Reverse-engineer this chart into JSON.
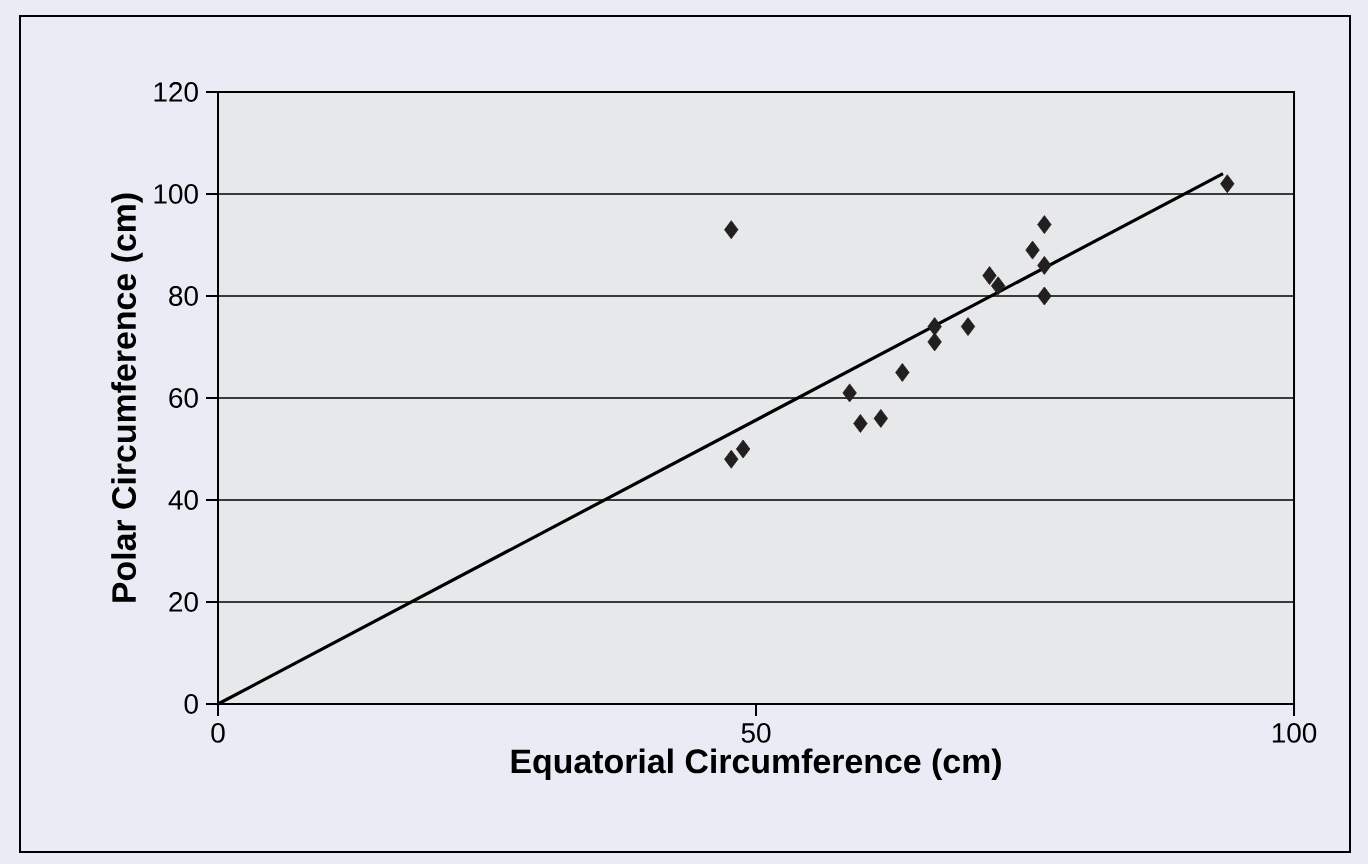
{
  "chart_data": {
    "type": "scatter",
    "xlabel": "Equatorial Circumference (cm)",
    "ylabel": "Polar Circumference (cm)",
    "xlim": [
      0,
      100
    ],
    "xticks": [
      0,
      50,
      100
    ],
    "ylim": [
      0,
      120
    ],
    "yticks": [
      0,
      20,
      40,
      60,
      80,
      100,
      120
    ],
    "grid": "y",
    "marker": "diamond",
    "series": [
      {
        "color": "#231f20",
        "x": [
          47.7,
          47.7,
          48.8,
          58.7,
          59.7,
          61.6,
          63.6,
          66.6,
          66.6,
          69.7,
          71.7,
          72.5,
          75.7,
          76.8,
          76.8,
          76.8,
          93.8
        ],
        "values": [
          93,
          48,
          50,
          61,
          55,
          56,
          65,
          74,
          71,
          74,
          84,
          82,
          89,
          94,
          86,
          80,
          102
        ]
      },
      {
        "type": "line",
        "color": "#000000",
        "marker": "none",
        "line_style": "solid",
        "x": [
          0,
          93.4
        ],
        "values": [
          0,
          104
        ]
      }
    ]
  }
}
